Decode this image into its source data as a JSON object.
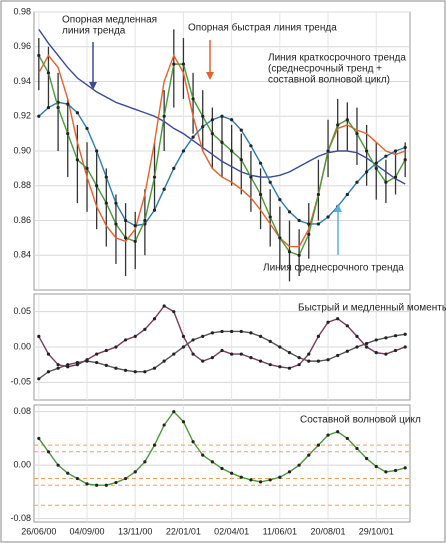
{
  "chart_data": [
    {
      "type": "line",
      "x": [
        0,
        2,
        4,
        6,
        8,
        10,
        12,
        14,
        16,
        18,
        20,
        22,
        24,
        26,
        28,
        30,
        32,
        34,
        36,
        38,
        40,
        42,
        44,
        46,
        48,
        50,
        52,
        54,
        56,
        58,
        60,
        62,
        64,
        66,
        68,
        70,
        72,
        74,
        76
      ],
      "xlim": [
        -1,
        77
      ],
      "ylim": [
        0.82,
        0.98
      ],
      "yticks": [
        0.84,
        0.86,
        0.88,
        {
          "value": 0.9,
          "label": "0.90"
        },
        0.92,
        0.94,
        0.96,
        0.98
      ],
      "grid": true,
      "bars": {
        "color": "#333333",
        "high": [
          0.965,
          0.96,
          0.945,
          0.93,
          0.915,
          0.905,
          0.9,
          0.89,
          0.875,
          0.87,
          0.865,
          0.878,
          0.905,
          0.935,
          0.97,
          0.965,
          0.945,
          0.935,
          0.925,
          0.92,
          0.915,
          0.91,
          0.9,
          0.89,
          0.878,
          0.868,
          0.86,
          0.855,
          0.87,
          0.895,
          0.918,
          0.93,
          0.928,
          0.925,
          0.915,
          0.905,
          0.895,
          0.9,
          0.905
        ],
        "low": [
          0.935,
          0.925,
          0.9,
          0.885,
          0.87,
          0.865,
          0.855,
          0.845,
          0.835,
          0.828,
          0.832,
          0.84,
          0.865,
          0.9,
          0.925,
          0.93,
          0.91,
          0.9,
          0.89,
          0.885,
          0.88,
          0.875,
          0.865,
          0.855,
          0.845,
          0.832,
          0.825,
          0.828,
          0.838,
          0.86,
          0.885,
          0.9,
          0.9,
          0.892,
          0.88,
          0.872,
          0.87,
          0.875,
          0.885
        ]
      },
      "series": [
        {
          "color": "#3a4a9a",
          "markers": false,
          "values": [
            0.97,
            0.962,
            0.955,
            0.948,
            0.942,
            0.938,
            0.934,
            0.931,
            0.928,
            0.926,
            0.924,
            0.922,
            0.92,
            0.917,
            0.913,
            0.91,
            0.906,
            0.902,
            0.898,
            0.894,
            0.891,
            0.888,
            0.886,
            0.885,
            0.885,
            0.886,
            0.888,
            0.891,
            0.894,
            0.897,
            0.899,
            0.9,
            0.9,
            0.899,
            0.896,
            0.892,
            0.888,
            0.884,
            0.881
          ]
        },
        {
          "color": "#e8602c",
          "markers": false,
          "values": [
            0.945,
            0.955,
            0.948,
            0.93,
            0.905,
            0.885,
            0.868,
            0.857,
            0.85,
            0.848,
            0.855,
            0.875,
            0.905,
            0.94,
            0.955,
            0.945,
            0.92,
            0.9,
            0.89,
            0.885,
            0.882,
            0.878,
            0.873,
            0.866,
            0.858,
            0.85,
            0.845,
            0.845,
            0.855,
            0.875,
            0.9,
            0.913,
            0.915,
            0.912,
            0.91,
            0.905,
            0.9,
            0.898,
            0.9
          ]
        },
        {
          "color": "#2a7ab0",
          "markers": true,
          "values": [
            0.92,
            0.925,
            0.928,
            0.927,
            0.922,
            0.913,
            0.9,
            0.885,
            0.87,
            0.86,
            0.857,
            0.858,
            0.866,
            0.878,
            0.89,
            0.9,
            0.908,
            0.914,
            0.918,
            0.92,
            0.918,
            0.912,
            0.903,
            0.893,
            0.882,
            0.872,
            0.865,
            0.86,
            0.858,
            0.858,
            0.862,
            0.868,
            0.875,
            0.882,
            0.888,
            0.893,
            0.897,
            0.9,
            0.902
          ]
        },
        {
          "color": "#4a9a3a",
          "markers": true,
          "values": [
            0.955,
            0.945,
            0.925,
            0.91,
            0.895,
            0.89,
            0.88,
            0.87,
            0.858,
            0.85,
            0.848,
            0.86,
            0.885,
            0.92,
            0.95,
            0.95,
            0.93,
            0.92,
            0.91,
            0.905,
            0.9,
            0.895,
            0.885,
            0.875,
            0.862,
            0.85,
            0.842,
            0.84,
            0.852,
            0.875,
            0.9,
            0.915,
            0.918,
            0.91,
            0.9,
            0.89,
            0.882,
            0.885,
            0.895
          ]
        }
      ],
      "annotations": [
        [
          "Опорная медленная",
          "линия тренда"
        ],
        [
          "Опорная быстрая линия тренда"
        ],
        [
          "Линия краткосрочного тренда",
          "(среднесрочный тренд +",
          "составной волновой цикл)"
        ],
        [
          "Линия среднесрочного тренда"
        ]
      ]
    },
    {
      "type": "line",
      "x": [
        0,
        2,
        4,
        6,
        8,
        10,
        12,
        14,
        16,
        18,
        20,
        22,
        24,
        26,
        28,
        30,
        32,
        34,
        36,
        38,
        40,
        42,
        44,
        46,
        48,
        50,
        52,
        54,
        56,
        58,
        60,
        62,
        64,
        66,
        68,
        70,
        72,
        74,
        76
      ],
      "xlim": [
        -1,
        77
      ],
      "ylim": [
        -0.075,
        0.075
      ],
      "yticks": [
        -0.05,
        {
          "value": 0,
          "label": "0.00"
        },
        0.05
      ],
      "grid": true,
      "series": [
        {
          "color": "#7a3a5a",
          "markers": true,
          "values": [
            0.015,
            -0.01,
            -0.025,
            -0.028,
            -0.025,
            -0.018,
            -0.01,
            -0.005,
            0,
            0.01,
            0.015,
            0.025,
            0.04,
            0.058,
            0.05,
            0.015,
            -0.01,
            -0.02,
            -0.015,
            -0.005,
            -0.01,
            -0.01,
            -0.015,
            -0.02,
            -0.025,
            -0.028,
            -0.03,
            -0.025,
            -0.01,
            0.015,
            0.035,
            0.04,
            0.03,
            0.015,
            0,
            -0.008,
            -0.01,
            -0.005,
            0
          ]
        },
        {
          "color": "#555555",
          "markers": true,
          "values": [
            -0.045,
            -0.035,
            -0.03,
            -0.025,
            -0.022,
            -0.02,
            -0.022,
            -0.026,
            -0.03,
            -0.033,
            -0.035,
            -0.035,
            -0.03,
            -0.02,
            -0.01,
            0,
            0.01,
            0.015,
            0.02,
            0.022,
            0.022,
            0.022,
            0.02,
            0.015,
            0.008,
            0,
            -0.008,
            -0.015,
            -0.02,
            -0.02,
            -0.018,
            -0.012,
            -0.006,
            0,
            0.005,
            0.01,
            0.013,
            0.016,
            0.018
          ]
        }
      ],
      "annotations": [
        [
          "Быстрый и медленный моменты"
        ]
      ]
    },
    {
      "type": "line",
      "x": [
        0,
        2,
        4,
        6,
        8,
        10,
        12,
        14,
        16,
        18,
        20,
        22,
        24,
        26,
        28,
        30,
        32,
        34,
        36,
        38,
        40,
        42,
        44,
        46,
        48,
        50,
        52,
        54,
        56,
        58,
        60,
        62,
        64,
        66,
        68,
        70,
        72,
        74,
        76
      ],
      "xlim": [
        -1,
        77
      ],
      "ylim": [
        -0.085,
        0.09
      ],
      "yticks": [
        {
          "value": -0.08,
          "label": "-0.08"
        },
        {
          "value": 0,
          "label": "0.00"
        },
        0.08
      ],
      "xticks": [
        {
          "value": 0,
          "label": "26/06/00"
        },
        {
          "value": 10,
          "label": "04/09/00"
        },
        {
          "value": 20,
          "label": "13/11/00"
        },
        {
          "value": 30,
          "label": "22/01/01"
        },
        {
          "value": 40,
          "label": "02/04/01"
        },
        {
          "value": 50,
          "label": "11/06/01"
        },
        {
          "value": 60,
          "label": "20/08/01"
        },
        {
          "value": 70,
          "label": "29/10/01"
        }
      ],
      "grid": true,
      "bands": {
        "color": "#f0a060",
        "values": [
          0.03,
          0.02,
          -0.02,
          -0.03,
          -0.06
        ]
      },
      "series": [
        {
          "color": "#4a9a3a",
          "markers": true,
          "values": [
            0.04,
            0.02,
            0,
            -0.012,
            -0.02,
            -0.028,
            -0.03,
            -0.03,
            -0.026,
            -0.02,
            -0.01,
            0.005,
            0.03,
            0.06,
            0.08,
            0.065,
            0.035,
            0.015,
            0.005,
            -0.005,
            -0.012,
            -0.018,
            -0.022,
            -0.025,
            -0.022,
            -0.018,
            -0.01,
            0,
            0.015,
            0.03,
            0.045,
            0.05,
            0.04,
            0.025,
            0.01,
            -0.002,
            -0.01,
            -0.008,
            -0.004
          ]
        }
      ],
      "annotations": [
        [
          "Составной волновой цикл"
        ]
      ]
    }
  ]
}
